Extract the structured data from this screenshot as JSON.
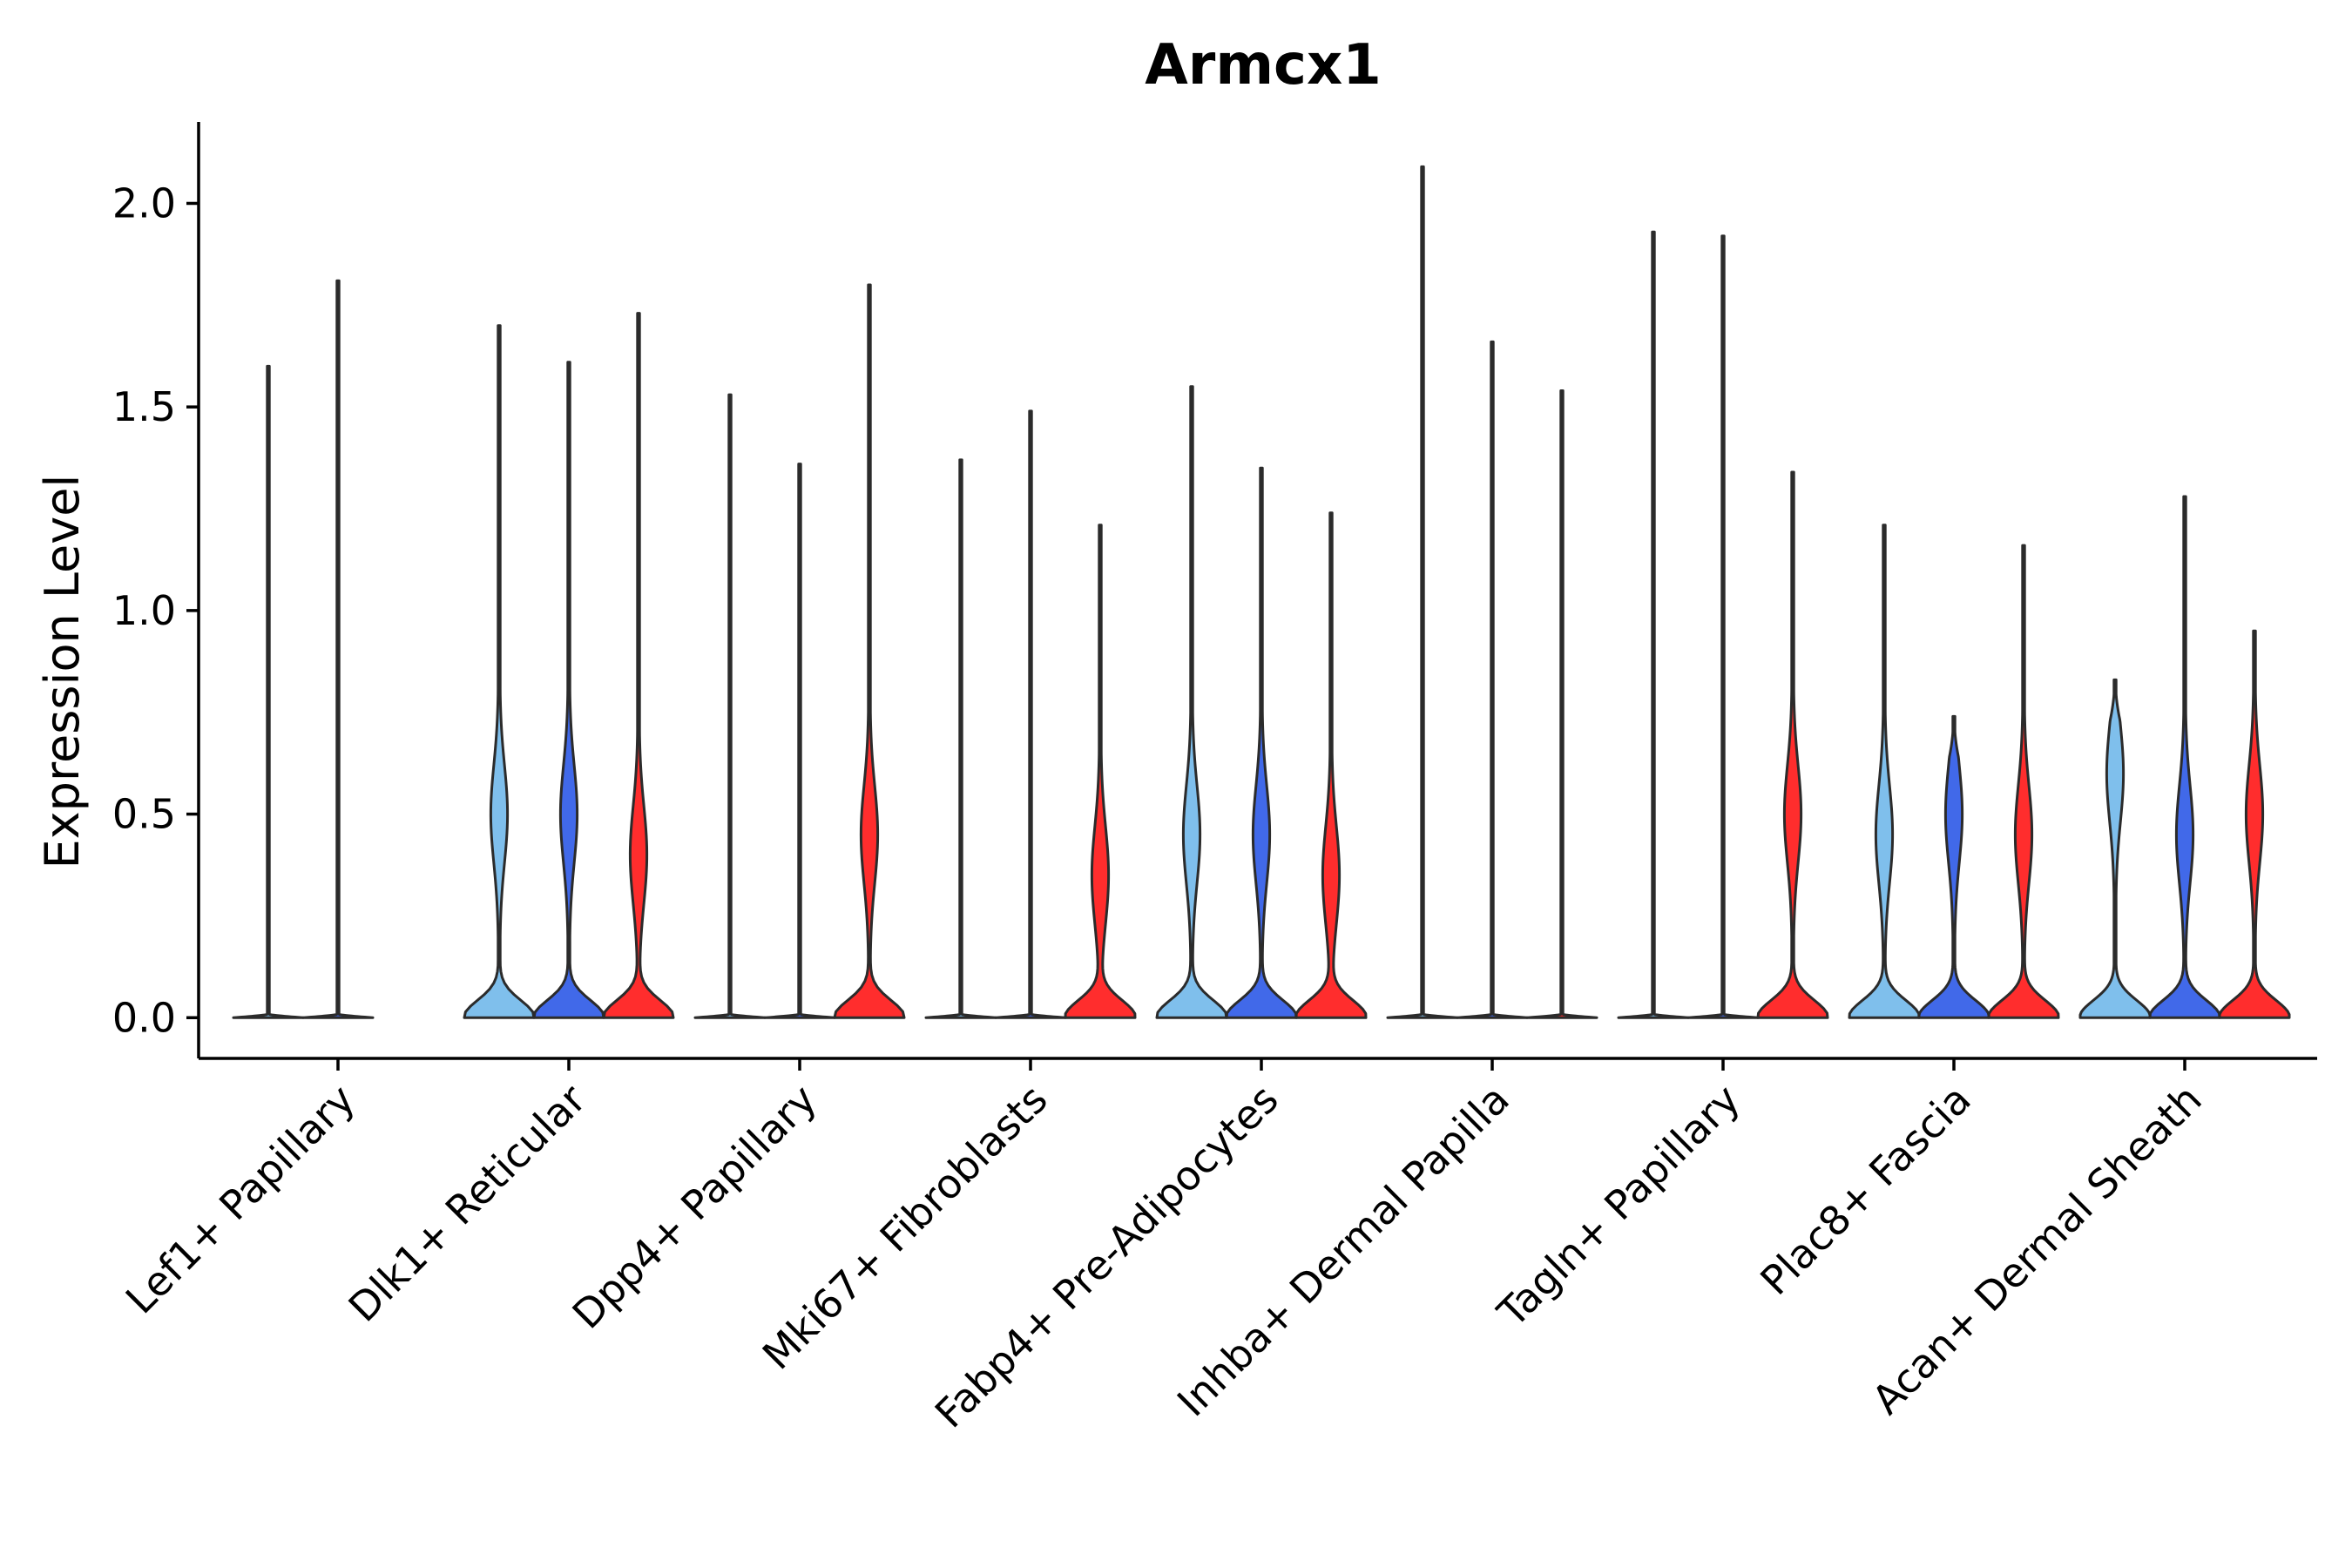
{
  "chart_data": {
    "type": "violin",
    "title": "Armcx1",
    "xlabel": "",
    "ylabel": "Expression Level",
    "ylim": [
      -0.1,
      2.2
    ],
    "yticks": [
      "0.0",
      "0.5",
      "1.0",
      "1.5",
      "2.0"
    ],
    "grid": false,
    "legend": "none",
    "series_colors": [
      "#7fbfec",
      "#4169e9",
      "#ff2d2d"
    ],
    "categories": [
      {
        "label": "Lef1+ Papillary",
        "violins": [
          {
            "max": 1.6,
            "shape": "flat"
          },
          {
            "max": 1.81,
            "shape": "flat"
          },
          {
            "max": 0.0,
            "shape": "flat"
          }
        ]
      },
      {
        "label": "Dlk1+ Reticular",
        "violins": [
          {
            "max": 1.7,
            "shape": "bimodal",
            "mode2": 0.5
          },
          {
            "max": 1.61,
            "shape": "bimodal",
            "mode2": 0.5
          },
          {
            "max": 1.73,
            "shape": "bimodal",
            "mode2": 0.4
          }
        ]
      },
      {
        "label": "Dpp4+ Papillary",
        "violins": [
          {
            "max": 1.53,
            "shape": "flat"
          },
          {
            "max": 1.36,
            "shape": "flat"
          },
          {
            "max": 1.8,
            "shape": "bimodal",
            "mode2": 0.45
          }
        ]
      },
      {
        "label": "Mki67+ Fibroblasts",
        "violins": [
          {
            "max": 1.37,
            "shape": "flat"
          },
          {
            "max": 1.49,
            "shape": "flat"
          },
          {
            "max": 1.21,
            "shape": "bimodal",
            "mode2": 0.35
          }
        ]
      },
      {
        "label": "Fabp4+ Pre-Adipocytes",
        "violins": [
          {
            "max": 1.55,
            "shape": "bimodal",
            "mode2": 0.45
          },
          {
            "max": 1.35,
            "shape": "bimodal",
            "mode2": 0.45
          },
          {
            "max": 1.24,
            "shape": "bimodal",
            "mode2": 0.35
          }
        ]
      },
      {
        "label": "Inhba+ Dermal Papilla",
        "violins": [
          {
            "max": 2.09,
            "shape": "flat"
          },
          {
            "max": 1.66,
            "shape": "flat"
          },
          {
            "max": 1.54,
            "shape": "flat"
          }
        ]
      },
      {
        "label": "Tagln+ Papillary",
        "violins": [
          {
            "max": 1.93,
            "shape": "flat"
          },
          {
            "max": 1.92,
            "shape": "flat"
          },
          {
            "max": 1.34,
            "shape": "bimodal",
            "mode2": 0.5
          }
        ]
      },
      {
        "label": "Plac8+ Fascia",
        "violins": [
          {
            "max": 1.21,
            "shape": "bimodal",
            "mode2": 0.45
          },
          {
            "max": 0.74,
            "shape": "bimodal",
            "mode2": 0.5
          },
          {
            "max": 1.16,
            "shape": "bimodal",
            "mode2": 0.45
          }
        ]
      },
      {
        "label": "Acan+ Dermal Sheath",
        "violins": [
          {
            "max": 0.83,
            "shape": "bimodal",
            "mode2": 0.6
          },
          {
            "max": 1.28,
            "shape": "bimodal",
            "mode2": 0.45
          },
          {
            "max": 0.95,
            "shape": "bimodal",
            "mode2": 0.5
          }
        ]
      }
    ]
  }
}
